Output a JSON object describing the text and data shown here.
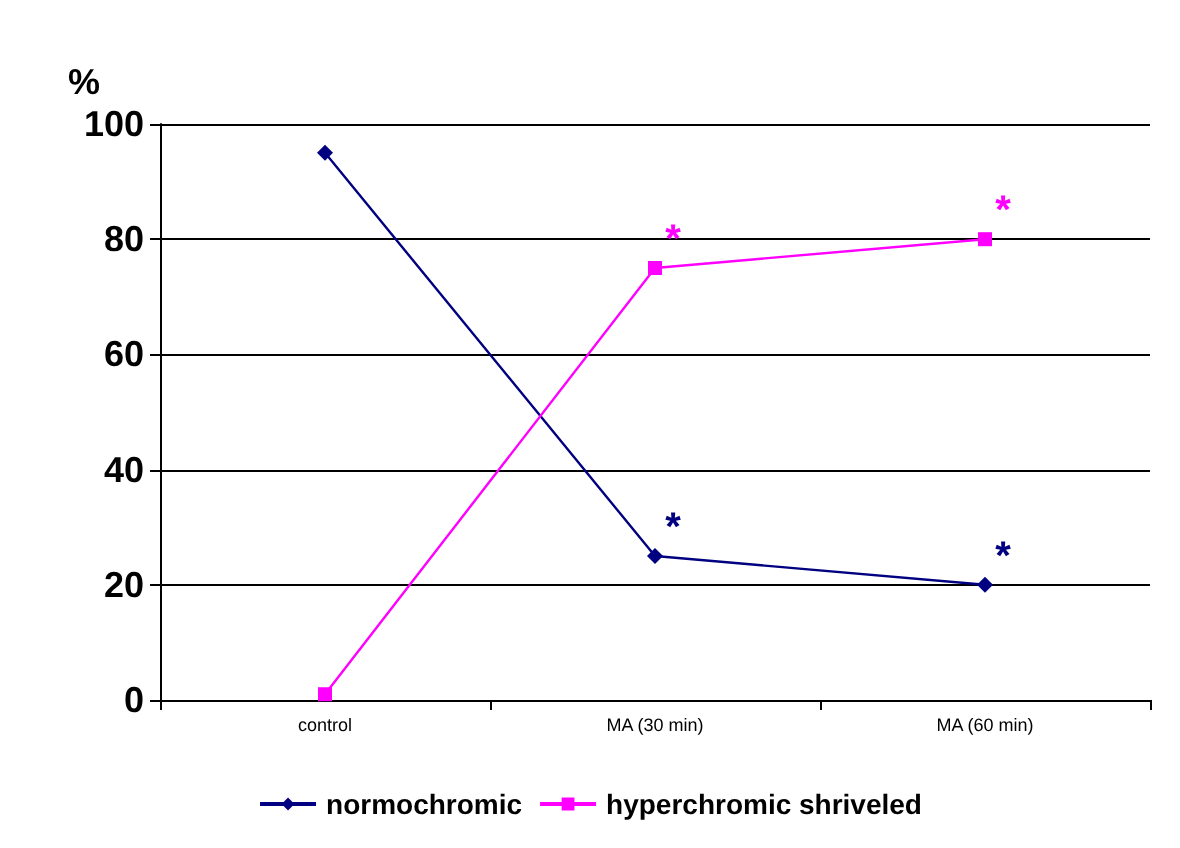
{
  "chart_data": {
    "type": "line",
    "ylabel": "%",
    "categories": [
      "control",
      "MA (30 min)",
      "MA (60 min)"
    ],
    "series": [
      {
        "name": "normochromic",
        "color": "#000080",
        "values": [
          95,
          25,
          20
        ],
        "marker": "diamond"
      },
      {
        "name": "hyperchromic shriveled",
        "color": "#ff00ff",
        "values": [
          1,
          75,
          80
        ],
        "marker": "square"
      }
    ],
    "ylim": [
      0,
      100
    ],
    "yticks": [
      0,
      20,
      40,
      60,
      80,
      100
    ],
    "grid": "y",
    "legend": "bottom",
    "annotations": [
      {
        "text": "*",
        "x": "MA (30 min)",
        "y": 75
      },
      {
        "text": "*",
        "x": "MA (60 min)",
        "y": 80
      },
      {
        "text": "*",
        "x": "MA (30 min)",
        "y": 25
      },
      {
        "text": "*",
        "x": "MA (60 min)",
        "y": 20
      }
    ]
  }
}
